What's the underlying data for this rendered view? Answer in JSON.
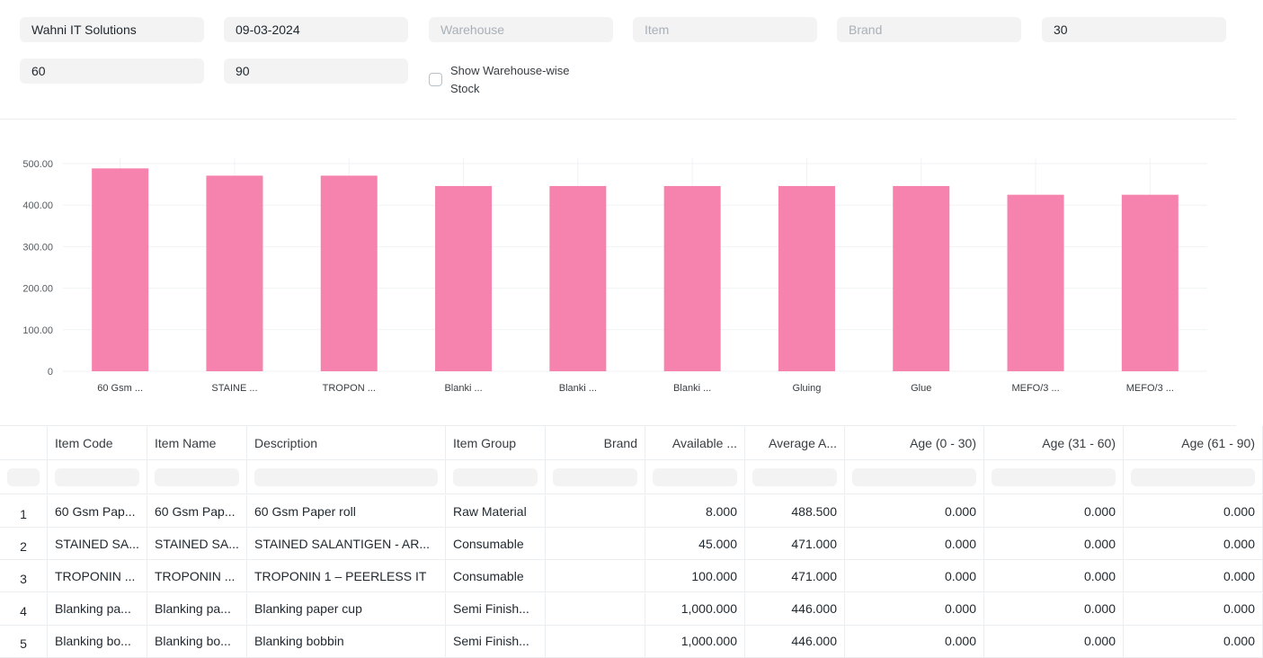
{
  "filters": {
    "company": "Wahni IT Solutions",
    "date": "09-03-2024",
    "warehouse_placeholder": "Warehouse",
    "item_placeholder": "Item",
    "brand_placeholder": "Brand",
    "range1": "30",
    "range2": "60",
    "range3": "90",
    "show_warehouse_label": "Show Warehouse-wise Stock"
  },
  "chart_data": {
    "type": "bar",
    "categories": [
      "60 Gsm ...",
      "STAINE ...",
      "TROPON ...",
      "Blanki ...",
      "Blanki ...",
      "Blanki ...",
      "Gluing",
      "Glue",
      "MEFO/3 ...",
      "MEFO/3 ..."
    ],
    "values": [
      488.5,
      471.0,
      471.0,
      446.0,
      446.0,
      446.0,
      446.0,
      446.0,
      425.0,
      425.0
    ],
    "ylim": [
      0,
      500
    ],
    "yticks": [
      "0",
      "100.00",
      "200.00",
      "300.00",
      "400.00",
      "500.00"
    ],
    "color": "#f683ae",
    "grid": true
  },
  "table": {
    "columns": [
      "Item Code",
      "Item Name",
      "Description",
      "Item Group",
      "Brand",
      "Available ...",
      "Average A...",
      "Age (0 - 30)",
      "Age (31 - 60)",
      "Age (61 - 90)"
    ],
    "rows": [
      {
        "num": "1",
        "cells": [
          "60 Gsm Pap...",
          "60 Gsm Pap...",
          "60 Gsm Paper roll",
          "Raw Material",
          "",
          "8.000",
          "488.500",
          "0.000",
          "0.000",
          "0.000"
        ]
      },
      {
        "num": "2",
        "cells": [
          "STAINED SA...",
          "STAINED SA...",
          "STAINED SALANTIGEN - AR...",
          "Consumable",
          "",
          "45.000",
          "471.000",
          "0.000",
          "0.000",
          "0.000"
        ]
      },
      {
        "num": "3",
        "cells": [
          "TROPONIN ...",
          "TROPONIN ...",
          "TROPONIN 1 – PEERLESS IT",
          "Consumable",
          "",
          "100.000",
          "471.000",
          "0.000",
          "0.000",
          "0.000"
        ]
      },
      {
        "num": "4",
        "cells": [
          "Blanking pa...",
          "Blanking pa...",
          "Blanking paper cup",
          "Semi Finish...",
          "",
          "1,000.000",
          "446.000",
          "0.000",
          "0.000",
          "0.000"
        ]
      },
      {
        "num": "5",
        "cells": [
          "Blanking bo...",
          "Blanking bo...",
          "Blanking bobbin",
          "Semi Finish...",
          "",
          "1,000.000",
          "446.000",
          "0.000",
          "0.000",
          "0.000"
        ]
      }
    ]
  }
}
